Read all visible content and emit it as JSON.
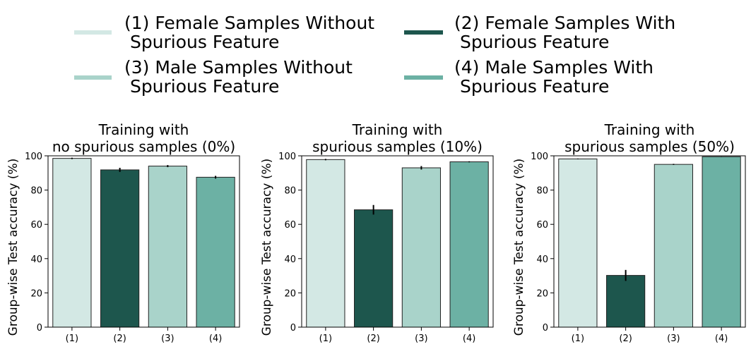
{
  "legend": {
    "items": [
      {
        "id": "1",
        "line1": "(1) Female Samples Without",
        "line2": " Spurious Feature",
        "color": "#d3e8e4"
      },
      {
        "id": "2",
        "line1": "(2) Female Samples With",
        "line2": " Spurious Feature",
        "color": "#1d564d"
      },
      {
        "id": "3",
        "line1": "(3) Male Samples Without",
        "line2": " Spurious Feature",
        "color": "#a9d3ca"
      },
      {
        "id": "4",
        "line1": "(4) Male Samples With",
        "line2": " Spurious Feature",
        "color": "#6cb1a4"
      }
    ]
  },
  "chart_data": [
    {
      "type": "bar",
      "title_line1": "Training with",
      "title_line2": "no spurious samples (0%)",
      "ylabel": "Group-wise Test accuracy (%)",
      "xlabel": "",
      "categories": [
        "(1)",
        "(2)",
        "(3)",
        "(4)"
      ],
      "values": [
        98.5,
        91.8,
        94.0,
        87.5
      ],
      "errors": [
        0.4,
        1.2,
        0.6,
        0.8
      ],
      "colors": [
        "#d3e8e4",
        "#1d564d",
        "#a9d3ca",
        "#6cb1a4"
      ],
      "ylim": [
        0,
        100
      ],
      "yticks": [
        "0",
        "20",
        "40",
        "60",
        "80",
        "100"
      ]
    },
    {
      "type": "bar",
      "title_line1": "Training with",
      "title_line2": "spurious samples (10%)",
      "ylabel": "Group-wise Test accuracy (%)",
      "xlabel": "",
      "categories": [
        "(1)",
        "(2)",
        "(3)",
        "(4)"
      ],
      "values": [
        97.8,
        68.5,
        93.0,
        96.5
      ],
      "errors": [
        0.4,
        2.8,
        1.0,
        0.3
      ],
      "colors": [
        "#d3e8e4",
        "#1d564d",
        "#a9d3ca",
        "#6cb1a4"
      ],
      "ylim": [
        0,
        100
      ],
      "yticks": [
        "0",
        "20",
        "40",
        "60",
        "80",
        "100"
      ]
    },
    {
      "type": "bar",
      "title_line1": "Training with",
      "title_line2": "spurious samples (50%)",
      "ylabel": "Group-wise Test accuracy (%)",
      "xlabel": "",
      "categories": [
        "(1)",
        "(2)",
        "(3)",
        "(4)"
      ],
      "values": [
        98.2,
        30.2,
        95.0,
        99.5
      ],
      "errors": [
        0.2,
        3.2,
        0.3,
        0.1
      ],
      "colors": [
        "#d3e8e4",
        "#1d564d",
        "#a9d3ca",
        "#6cb1a4"
      ],
      "ylim": [
        0,
        100
      ],
      "yticks": [
        "0",
        "20",
        "40",
        "60",
        "80",
        "100"
      ]
    }
  ]
}
